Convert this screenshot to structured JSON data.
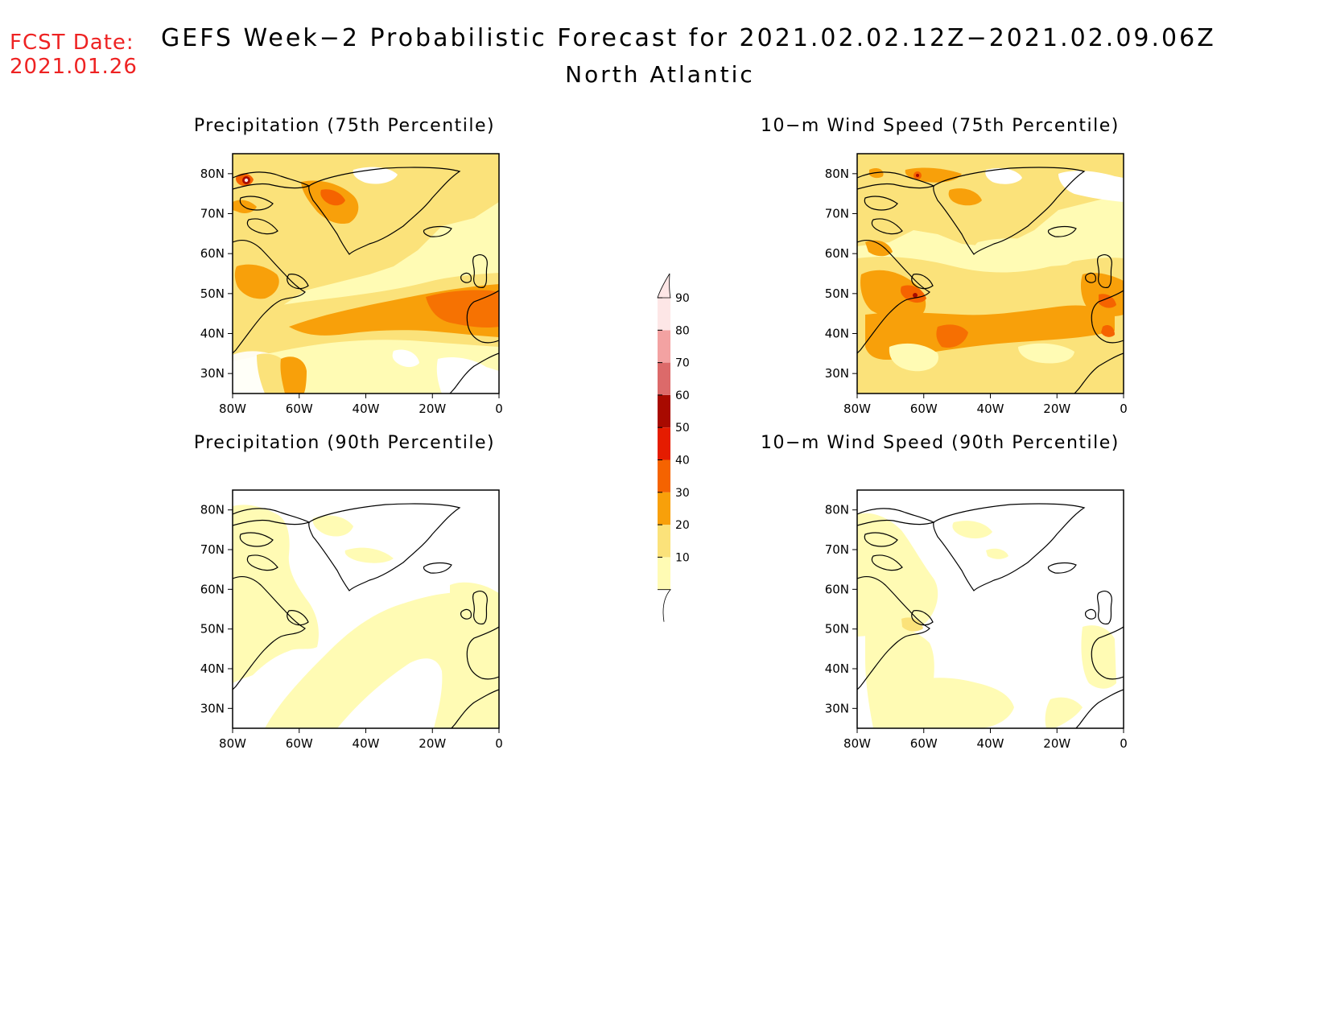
{
  "header": {
    "fcst_label": "FCST Date:",
    "fcst_date": "2021.01.26",
    "title": "GEFS Week−2 Probabilistic Forecast for 2021.02.02.12Z−2021.02.09.06Z",
    "region": "North Atlantic"
  },
  "panels": [
    {
      "id": "precip75",
      "title": "Precipitation (75th Percentile)"
    },
    {
      "id": "wind75",
      "title": "10−m Wind Speed (75th Percentile)"
    },
    {
      "id": "precip90",
      "title": "Precipitation (90th Percentile)"
    },
    {
      "id": "wind90",
      "title": "10−m Wind Speed (90th Percentile)"
    }
  ],
  "map_axes": {
    "lat_labels": [
      "80N",
      "70N",
      "60N",
      "50N",
      "40N",
      "30N"
    ],
    "lon_labels": [
      "80W",
      "60W",
      "40W",
      "20W",
      "0"
    ],
    "lat_range": [
      25,
      85
    ],
    "lon_range": [
      -80,
      0
    ]
  },
  "colorbar": {
    "levels": [
      "10",
      "20",
      "30",
      "40",
      "50",
      "60",
      "70",
      "80",
      "90"
    ],
    "colors": [
      "#fffbb4",
      "#fbe27a",
      "#f8a00a",
      "#f56300",
      "#e51c00",
      "#a80a00",
      "#dc6a6a",
      "#f3a2a2",
      "#fde6e6"
    ]
  },
  "palette": {
    "light_yellow": "#fffbb4",
    "yellow": "#fbe27a",
    "orange": "#f8a00a",
    "dark_orange": "#f56300",
    "red": "#e51c00",
    "coast": "#000000",
    "fcst_red": "#ee2222"
  }
}
